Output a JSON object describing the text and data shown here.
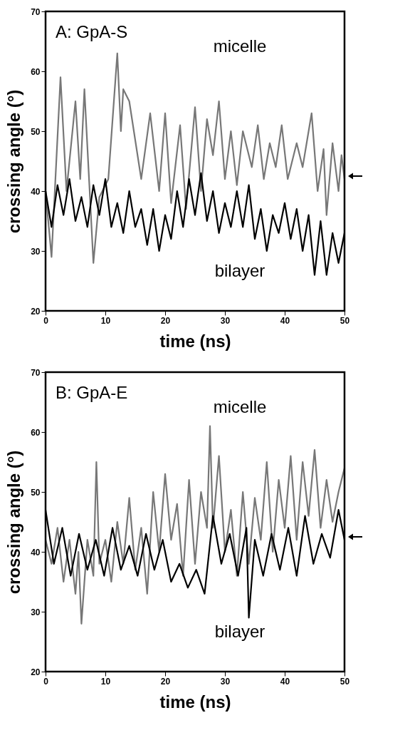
{
  "chart_data": [
    {
      "type": "line",
      "title": "A: GpA-S",
      "xlabel": "time (ns)",
      "ylabel": "crossing angle (°)",
      "xlim": [
        0,
        50
      ],
      "xticks": [
        0,
        10,
        20,
        30,
        40,
        50
      ],
      "ylim": [
        20,
        70
      ],
      "yticks": [
        20,
        30,
        40,
        50,
        60,
        70
      ],
      "grid": false,
      "legend": false,
      "series": [
        {
          "name": "micelle",
          "color": "#777777",
          "x": [
            0,
            1,
            2.5,
            3.5,
            5,
            5.8,
            6.5,
            8,
            9,
            10.5,
            12,
            12.6,
            13,
            14,
            16,
            17.5,
            19,
            20,
            21,
            22.5,
            23.5,
            25,
            26,
            27,
            28,
            29,
            30,
            31,
            32,
            33,
            34.5,
            35.5,
            36.5,
            37.5,
            38.5,
            39.5,
            40.5,
            42,
            43,
            44.5,
            45.5,
            46.5,
            47,
            48,
            49,
            49.5,
            50
          ],
          "values": [
            40,
            29,
            59,
            40,
            55,
            42,
            57,
            28,
            39,
            42,
            63,
            50,
            57,
            55,
            42,
            53,
            40,
            53,
            38,
            51,
            37,
            54,
            40,
            52,
            46,
            55,
            42,
            50,
            41,
            50,
            44,
            51,
            42,
            48,
            44,
            51,
            42,
            48,
            44,
            53,
            40,
            47,
            36,
            48,
            40,
            46,
            42
          ]
        },
        {
          "name": "bilayer",
          "color": "#000000",
          "x": [
            0,
            1,
            2,
            3,
            4,
            5,
            6,
            7,
            8,
            9,
            10,
            11,
            12,
            13,
            14,
            15,
            16,
            17,
            18,
            19,
            20,
            21,
            22,
            23,
            24,
            25,
            26,
            27,
            28,
            29,
            30,
            31,
            32,
            33,
            34,
            35,
            36,
            37,
            38,
            39,
            40,
            41,
            42,
            43,
            44,
            45,
            46,
            47,
            48,
            49,
            50
          ],
          "values": [
            40,
            34,
            41,
            36,
            42,
            35,
            39,
            34,
            41,
            36,
            42,
            34,
            38,
            33,
            40,
            34,
            37,
            31,
            37,
            30,
            36,
            32,
            40,
            34,
            42,
            36,
            43,
            35,
            40,
            33,
            38,
            34,
            40,
            34,
            41,
            32,
            37,
            30,
            36,
            33,
            38,
            32,
            37,
            30,
            36,
            26,
            35,
            26,
            33,
            28,
            33
          ]
        }
      ]
    },
    {
      "type": "line",
      "title": "B: GpA-E",
      "xlabel": "time (ns)",
      "ylabel": "crossing angle (°)",
      "xlim": [
        0,
        50
      ],
      "xticks": [
        0,
        10,
        20,
        30,
        40,
        50
      ],
      "ylim": [
        20,
        70
      ],
      "yticks": [
        20,
        30,
        40,
        50,
        60,
        70
      ],
      "grid": false,
      "legend": false,
      "series": [
        {
          "name": "micelle",
          "color": "#777777",
          "x": [
            0,
            1,
            2,
            3,
            4,
            5,
            5.5,
            6,
            7,
            8,
            8.5,
            9,
            10,
            11,
            12,
            13,
            14,
            15,
            16,
            17,
            18,
            19,
            20,
            21,
            22,
            23,
            24,
            25,
            26,
            27,
            27.5,
            28,
            29,
            30,
            31,
            32,
            33,
            34,
            35,
            36,
            37,
            38,
            39,
            40,
            41,
            42,
            43,
            44,
            45,
            46,
            47,
            48,
            49,
            50
          ],
          "values": [
            42,
            38,
            44,
            35,
            42,
            33,
            40,
            28,
            42,
            36,
            55,
            38,
            42,
            35,
            45,
            38,
            49,
            37,
            44,
            33,
            50,
            40,
            53,
            42,
            48,
            36,
            52,
            38,
            50,
            44,
            61,
            44,
            56,
            40,
            47,
            36,
            50,
            38,
            49,
            42,
            55,
            40,
            52,
            44,
            56,
            42,
            55,
            46,
            57,
            44,
            52,
            45,
            50,
            54
          ]
        },
        {
          "name": "bilayer",
          "color": "#000000",
          "x": [
            0,
            1.4,
            2.8,
            4.2,
            5.6,
            7,
            8.4,
            9.8,
            11.2,
            12.6,
            14,
            15.4,
            16.8,
            18.2,
            19.6,
            21,
            22.4,
            23.8,
            25.2,
            26.6,
            28,
            29.4,
            30.8,
            32.2,
            33.6,
            34,
            35,
            36.4,
            37.8,
            39.2,
            40.6,
            42,
            43.4,
            44.8,
            46.2,
            47.6,
            49,
            50
          ],
          "values": [
            47,
            38,
            44,
            36,
            43,
            37,
            42,
            36,
            44,
            37,
            41,
            36,
            43,
            37,
            42,
            35,
            38,
            34,
            37,
            33,
            46,
            38,
            43,
            36,
            44,
            29,
            42,
            36,
            43,
            37,
            44,
            36,
            46,
            38,
            43,
            39,
            47,
            42
          ]
        }
      ]
    }
  ]
}
